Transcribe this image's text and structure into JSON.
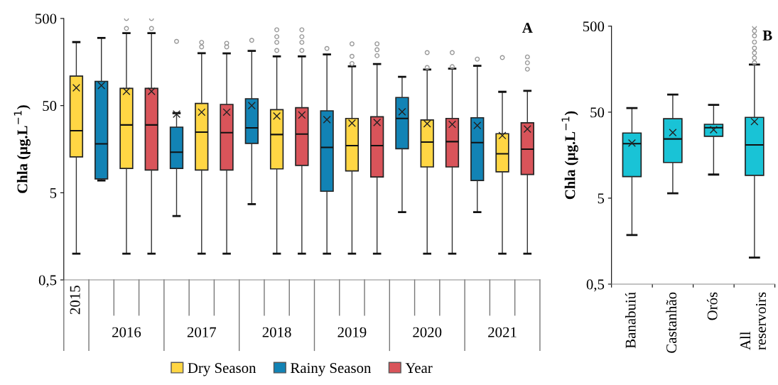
{
  "chart_data": [
    {
      "type": "box",
      "title": "A",
      "ylabel": "Chla (μg.L$^{−1}$)",
      "log": "y",
      "ylim": [
        0.5,
        500
      ],
      "yticks": [
        {
          "value": 0.5,
          "label": "0,5"
        },
        5,
        50,
        500
      ],
      "legend": "bottom",
      "grid": false,
      "marker": "cross",
      "categories": [
        "2015",
        null,
        "2016",
        null,
        null,
        "2017",
        null,
        null,
        "2018",
        null,
        null,
        "2019",
        null,
        null,
        "2020",
        null,
        null,
        "2021",
        null
      ],
      "series": [
        {
          "name": "Dry Season",
          "color": "#ffd644",
          "boxes": [
            {
              "low": 1.0,
              "q1": 12.9,
              "median": 25.8,
              "q3": 109,
              "high": 268,
              "mean": 80
            },
            null,
            {
              "low": 1.0,
              "q1": 9.5,
              "median": 30,
              "q3": 79,
              "high": 339,
              "mean": 73,
              "outliers": [
                384,
                500
              ]
            },
            null,
            null,
            {
              "low": 1.0,
              "q1": 9.1,
              "median": 24.8,
              "q3": 53,
              "high": 200,
              "mean": 42,
              "outliers": [
                236,
                266
              ]
            },
            null,
            null,
            {
              "low": 1.0,
              "q1": 9.4,
              "median": 23.3,
              "q3": 45,
              "high": 184,
              "mean": 38,
              "outliers": [
                215,
                266,
                309,
                371
              ]
            },
            null,
            null,
            {
              "low": 1.0,
              "q1": 8.9,
              "median": 17.4,
              "q3": 35.6,
              "high": 141,
              "mean": 31.5,
              "outliers": [
                152,
                184,
                256
              ]
            },
            null,
            null,
            {
              "low": 1.0,
              "q1": 9.9,
              "median": 19.1,
              "q3": 34.2,
              "high": 130,
              "mean": 31,
              "outliers": [
                137,
                203
              ]
            },
            null,
            null,
            {
              "low": 1.0,
              "q1": 8.7,
              "median": 14,
              "q3": 23.8,
              "high": 72,
              "mean": 22.7,
              "outliers": [
                178
              ]
            },
            null
          ]
        },
        {
          "name": "Rainy Season",
          "color": "#1283b5",
          "boxes": [
            null,
            {
              "low": 6.9,
              "q1": 7.2,
              "median": 18.2,
              "q3": 95,
              "high": 299,
              "mean": 85
            },
            null,
            null,
            {
              "low": 2.7,
              "q1": 9.5,
              "median": 14.6,
              "q3": 28.3,
              "high": 41,
              "mean": 40,
              "outliers": [
                273
              ]
            },
            null,
            null,
            {
              "low": 3.7,
              "q1": 18.4,
              "median": 27.8,
              "q3": 60,
              "high": 212,
              "mean": 50,
              "outliers": [
                281
              ]
            },
            null,
            null,
            {
              "low": 1.0,
              "q1": 5.2,
              "median": 16.6,
              "q3": 43.6,
              "high": 193,
              "mean": 34.6,
              "outliers": [
                226
              ]
            },
            null,
            null,
            {
              "low": 3.0,
              "q1": 16,
              "median": 35.6,
              "q3": 62,
              "high": 107,
              "mean": 42.5
            },
            null,
            null,
            {
              "low": 3.0,
              "q1": 6.9,
              "median": 18.8,
              "q3": 36.3,
              "high": 143,
              "mean": 29.6,
              "outliers": [
                171
              ]
            },
            null,
            null
          ]
        },
        {
          "name": "Year",
          "color": "#d9545a",
          "boxes": [
            null,
            null,
            null,
            {
              "low": 1.0,
              "q1": 9.1,
              "median": 30,
              "q3": 79,
              "high": 339,
              "mean": 73,
              "outliers": [
                384,
                500
              ]
            },
            null,
            null,
            {
              "low": 1.0,
              "q1": 9.1,
              "median": 24.5,
              "q3": 51.6,
              "high": 199,
              "mean": 42,
              "outliers": [
                236,
                260
              ]
            },
            null,
            null,
            {
              "low": 1.0,
              "q1": 10.3,
              "median": 23.6,
              "q3": 47.3,
              "high": 184,
              "mean": 39,
              "outliers": [
                215,
                266,
                309,
                371
              ]
            },
            null,
            null,
            {
              "low": 1.0,
              "q1": 7.6,
              "median": 17.4,
              "q3": 37.3,
              "high": 150,
              "mean": 32,
              "outliers": [
                187,
                219,
                256
              ]
            },
            null,
            null,
            {
              "low": 1.0,
              "q1": 9.9,
              "median": 19.3,
              "q3": 35.6,
              "high": 133,
              "mean": 30.5,
              "outliers": [
                140,
                203
              ]
            },
            null,
            null,
            {
              "low": 1.0,
              "q1": 8.1,
              "median": 15.8,
              "q3": 31.8,
              "high": 74,
              "mean": 26.9,
              "outliers": [
                131,
                155,
                181
              ]
            }
          ]
        }
      ]
    },
    {
      "type": "box",
      "title": "B",
      "ylabel": "Chla (μg.L$^{−1}$)",
      "log": "y",
      "ylim": [
        0.5,
        500
      ],
      "yticks": [
        {
          "value": 0.5,
          "label": "0,5"
        },
        5,
        50,
        500
      ],
      "grid": false,
      "marker": "cross",
      "categories": [
        "Banabuiú",
        "Castanhão",
        "Orós",
        "All\nreservoirs"
      ],
      "series": [
        {
          "color": "#19c3d6",
          "boxes": [
            {
              "low": 1.86,
              "q1": 8.9,
              "median": 21.5,
              "q3": 28.6,
              "high": 55.7,
              "mean": 21.9
            },
            {
              "low": 5.7,
              "q1": 13,
              "median": 24.4,
              "q3": 42,
              "high": 80,
              "mean": 28.9
            },
            {
              "low": 9.4,
              "q1": 26.2,
              "median": 33,
              "q3": 36.1,
              "high": 60.7,
              "mean": 31.3
            },
            {
              "low": 1.02,
              "q1": 9.2,
              "median": 20.8,
              "q3": 43.5,
              "high": 179,
              "mean": 38.8,
              "outliers": [
                188,
                214,
                244,
                278,
                327,
                386,
                440,
                500
              ]
            }
          ]
        }
      ]
    }
  ]
}
